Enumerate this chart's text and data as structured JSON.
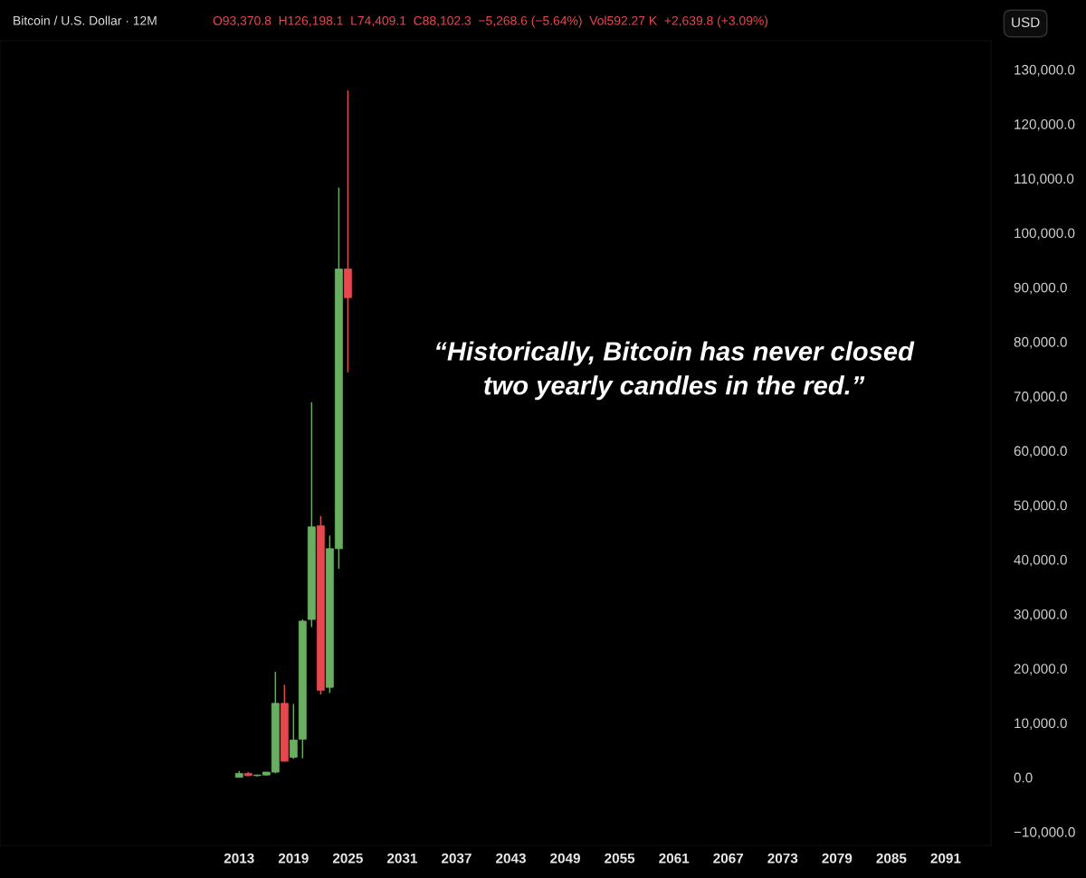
{
  "chart_data": {
    "type": "candlestick",
    "title": "Bitcoin / U.S. Dollar · 12M",
    "subtitle": "O93,370.8  H126,198.1  L74,409.1  C88,102.3  −5,268.6 (−5.64%)  Vol592.27 K  +2,639.8 (+3.09%)",
    "ylabel": "USD",
    "annotations": [
      "“Historically, Bitcoin has never closed\ntwo yearly candles in the red.”"
    ],
    "x": [
      2013,
      2014,
      2015,
      2016,
      2017,
      2018,
      2019,
      2020,
      2021,
      2022,
      2023,
      2024,
      2025
    ],
    "ohlc": [
      [
        13,
        1160,
        13,
        730
      ],
      [
        730,
        1000,
        200,
        320
      ],
      [
        320,
        500,
        150,
        430
      ],
      [
        430,
        980,
        350,
        960
      ],
      [
        960,
        19370,
        750,
        13600
      ],
      [
        13600,
        17000,
        2900,
        2970
      ],
      [
        3700,
        13500,
        3400,
        6860
      ],
      [
        7000,
        29000,
        3540,
        28700
      ],
      [
        29000,
        68900,
        27600,
        46000
      ],
      [
        46200,
        48000,
        15200,
        16000
      ],
      [
        16540,
        44400,
        15500,
        42000
      ],
      [
        42000,
        108300,
        38300,
        93350
      ],
      [
        93370.8,
        126198.1,
        74409.1,
        88102.3
      ]
    ],
    "colors": [
      "#6aae62",
      "#e5484f",
      "#6aae62",
      "#6aae62",
      "#6aae62",
      "#e5484f",
      "#6aae62",
      "#6aae62",
      "#6aae62",
      "#e5484f",
      "#6aae62",
      "#6aae62",
      "#e5484f"
    ],
    "xlim": [
      1986.6,
      2096
    ],
    "xticks": [
      2013,
      2019,
      2025,
      2031,
      2037,
      2043,
      2049,
      2055,
      2061,
      2067,
      2073,
      2079,
      2085,
      2091
    ],
    "ylim": [
      -12500,
      135300
    ],
    "yticks": [
      {
        "value": -10000,
        "label": "−10,000.0"
      },
      {
        "value": 0,
        "label": "0.0"
      },
      {
        "value": 10000,
        "label": "10,000.0"
      },
      {
        "value": 20000,
        "label": "20,000.0"
      },
      {
        "value": 30000,
        "label": "30,000.0"
      },
      {
        "value": 40000,
        "label": "40,000.0"
      },
      {
        "value": 50000,
        "label": "50,000.0"
      },
      {
        "value": 60000,
        "label": "60,000.0"
      },
      {
        "value": 70000,
        "label": "70,000.0"
      },
      {
        "value": 80000,
        "label": "80,000.0"
      },
      {
        "value": 90000,
        "label": "90,000.0"
      },
      {
        "value": 100000,
        "label": "100,000.0"
      },
      {
        "value": 110000,
        "label": "110,000.0"
      },
      {
        "value": 120000,
        "label": "120,000.0"
      },
      {
        "value": 130000,
        "label": "130,000.0"
      }
    ],
    "grid": false
  }
}
